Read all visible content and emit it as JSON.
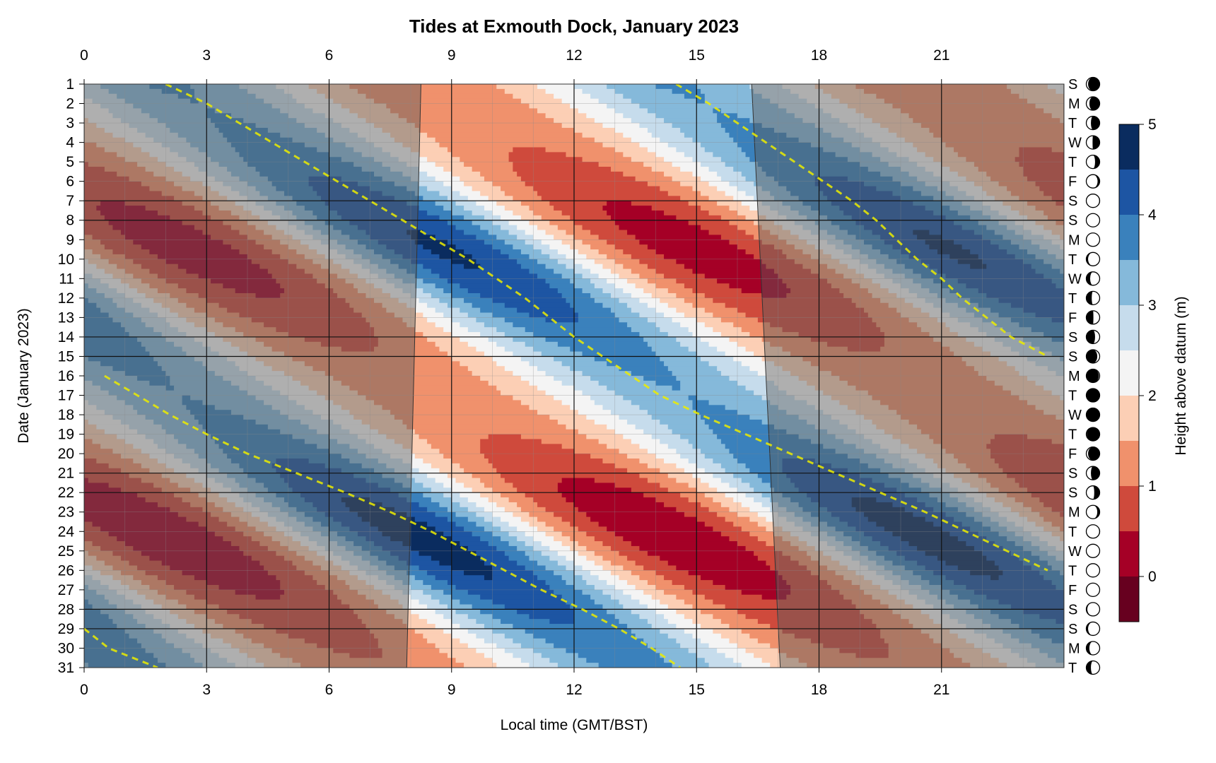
{
  "chart_data": {
    "type": "heatmap",
    "title": "Tides at Exmouth Dock, January 2023",
    "xlabel": "Local time (GMT/BST)",
    "ylabel": "Date (January 2023)",
    "legend_title": "Height above datum (m)",
    "xlim": [
      0,
      24
    ],
    "ylim": [
      1,
      31
    ],
    "x_ticks": [
      0,
      3,
      6,
      9,
      12,
      15,
      18,
      21
    ],
    "x_tick_labels": [
      "0",
      "3",
      "6",
      "9",
      "12",
      "15",
      "18",
      "21"
    ],
    "days": [
      1,
      2,
      3,
      4,
      5,
      6,
      7,
      8,
      9,
      10,
      11,
      12,
      13,
      14,
      15,
      16,
      17,
      18,
      19,
      20,
      21,
      22,
      23,
      24,
      25,
      26,
      27,
      28,
      29,
      30,
      31
    ],
    "day_labels": [
      "1",
      "2",
      "3",
      "4",
      "5",
      "6",
      "7",
      "8",
      "9",
      "10",
      "11",
      "12",
      "13",
      "14",
      "15",
      "16",
      "17",
      "18",
      "19",
      "20",
      "21",
      "22",
      "23",
      "24",
      "25",
      "26",
      "27",
      "28",
      "29",
      "30",
      "31"
    ],
    "weekdays": [
      "S",
      "M",
      "T",
      "W",
      "T",
      "F",
      "S",
      "S",
      "M",
      "T",
      "W",
      "T",
      "F",
      "S",
      "S",
      "M",
      "T",
      "W",
      "T",
      "F",
      "S",
      "S",
      "M",
      "T",
      "W",
      "T",
      "F",
      "S",
      "S",
      "M",
      "T"
    ],
    "moon_phase": [
      0.62,
      0.66,
      0.7,
      0.74,
      0.8,
      0.87,
      0.94,
      0.0,
      0.06,
      0.12,
      0.18,
      0.22,
      0.26,
      0.3,
      0.36,
      0.42,
      0.46,
      0.5,
      0.56,
      0.62,
      0.7,
      0.78,
      0.86,
      0.94,
      1.0,
      0.03,
      0.06,
      0.09,
      0.12,
      0.16,
      0.2
    ],
    "weekend_rows": [
      7,
      8,
      14,
      15,
      21,
      22,
      28,
      29
    ],
    "color_levels": [
      -0.5,
      0,
      0.5,
      1,
      1.5,
      2,
      2.5,
      3,
      3.5,
      4,
      4.5,
      5
    ],
    "colors": [
      "#67001f",
      "#a50026",
      "#cf4a3c",
      "#f0916c",
      "#fccfb5",
      "#f4f4f4",
      "#c6dcec",
      "#85b9da",
      "#3a81bc",
      "#1d55a3",
      "#0a2c5f"
    ],
    "colorbar_ticks": [
      0,
      1,
      2,
      3,
      4,
      5
    ],
    "colorbar_tick_labels": [
      "0",
      "1",
      "2",
      "3",
      "4",
      "5"
    ],
    "daylight": {
      "sunrise_start": 8.25,
      "sunrise_end": 7.9,
      "sunset_start": 16.35,
      "sunset_end": 17.05
    },
    "tide_model": {
      "mean_level": 2.25,
      "semi_diurnal_period_h": 12.42,
      "high_water_day1_h": 2.0,
      "daily_shift_h": 0.8,
      "amplitude_min": 1.25,
      "amplitude_max": 2.3,
      "neap_days": [
        2,
        16.5,
        30
      ],
      "spring_days": [
        9.5,
        23.5
      ]
    },
    "moonrise_curve": {
      "color": "#e6e600",
      "points": [
        [
          1,
          2.0
        ],
        [
          2,
          3.0
        ],
        [
          3,
          3.8
        ],
        [
          4,
          4.6
        ],
        [
          5,
          5.4
        ],
        [
          6,
          6.2
        ],
        [
          7,
          7.0
        ],
        [
          8,
          7.8
        ],
        [
          9,
          8.6
        ],
        [
          10,
          9.4
        ],
        [
          11,
          10.1
        ],
        [
          12,
          10.8
        ],
        [
          13,
          11.4
        ],
        [
          14,
          12.0
        ],
        [
          15,
          12.7
        ],
        [
          16,
          13.4
        ],
        [
          17,
          14.1
        ],
        [
          18,
          15.1
        ],
        [
          19,
          16.2
        ],
        [
          20,
          17.3
        ],
        [
          21,
          18.4
        ],
        [
          22,
          19.5
        ],
        [
          23,
          20.6
        ],
        [
          24,
          21.6
        ],
        [
          25,
          22.6
        ],
        [
          26,
          23.6
        ]
      ]
    },
    "moonset_curve": {
      "color": "#e6e600",
      "points": [
        [
          1,
          14.5
        ],
        [
          2,
          15.3
        ],
        [
          3,
          16.0
        ],
        [
          4,
          16.7
        ],
        [
          5,
          17.4
        ],
        [
          6,
          18.1
        ],
        [
          7,
          18.8
        ],
        [
          8,
          19.4
        ],
        [
          9,
          19.9
        ],
        [
          10,
          20.4
        ],
        [
          11,
          21.0
        ],
        [
          12,
          21.5
        ],
        [
          13,
          22.1
        ],
        [
          14,
          22.7
        ],
        [
          15,
          23.6
        ]
      ]
    },
    "moonset_curve_2": {
      "color": "#e6e600",
      "points": [
        [
          16,
          0.5
        ],
        [
          17,
          1.3
        ],
        [
          18,
          2.1
        ],
        [
          19,
          3.0
        ],
        [
          20,
          4.0
        ],
        [
          21,
          5.2
        ],
        [
          22,
          6.4
        ],
        [
          23,
          7.5
        ],
        [
          24,
          8.5
        ],
        [
          25,
          9.4
        ],
        [
          26,
          10.3
        ],
        [
          27,
          11.2
        ],
        [
          28,
          12.2
        ],
        [
          29,
          13.1
        ],
        [
          30,
          13.9
        ],
        [
          31,
          14.6
        ]
      ]
    },
    "moonrise_curve_2": {
      "color": "#e6e600",
      "points": [
        [
          29,
          0.0
        ],
        [
          30,
          0.6
        ],
        [
          31,
          1.8
        ]
      ]
    }
  }
}
